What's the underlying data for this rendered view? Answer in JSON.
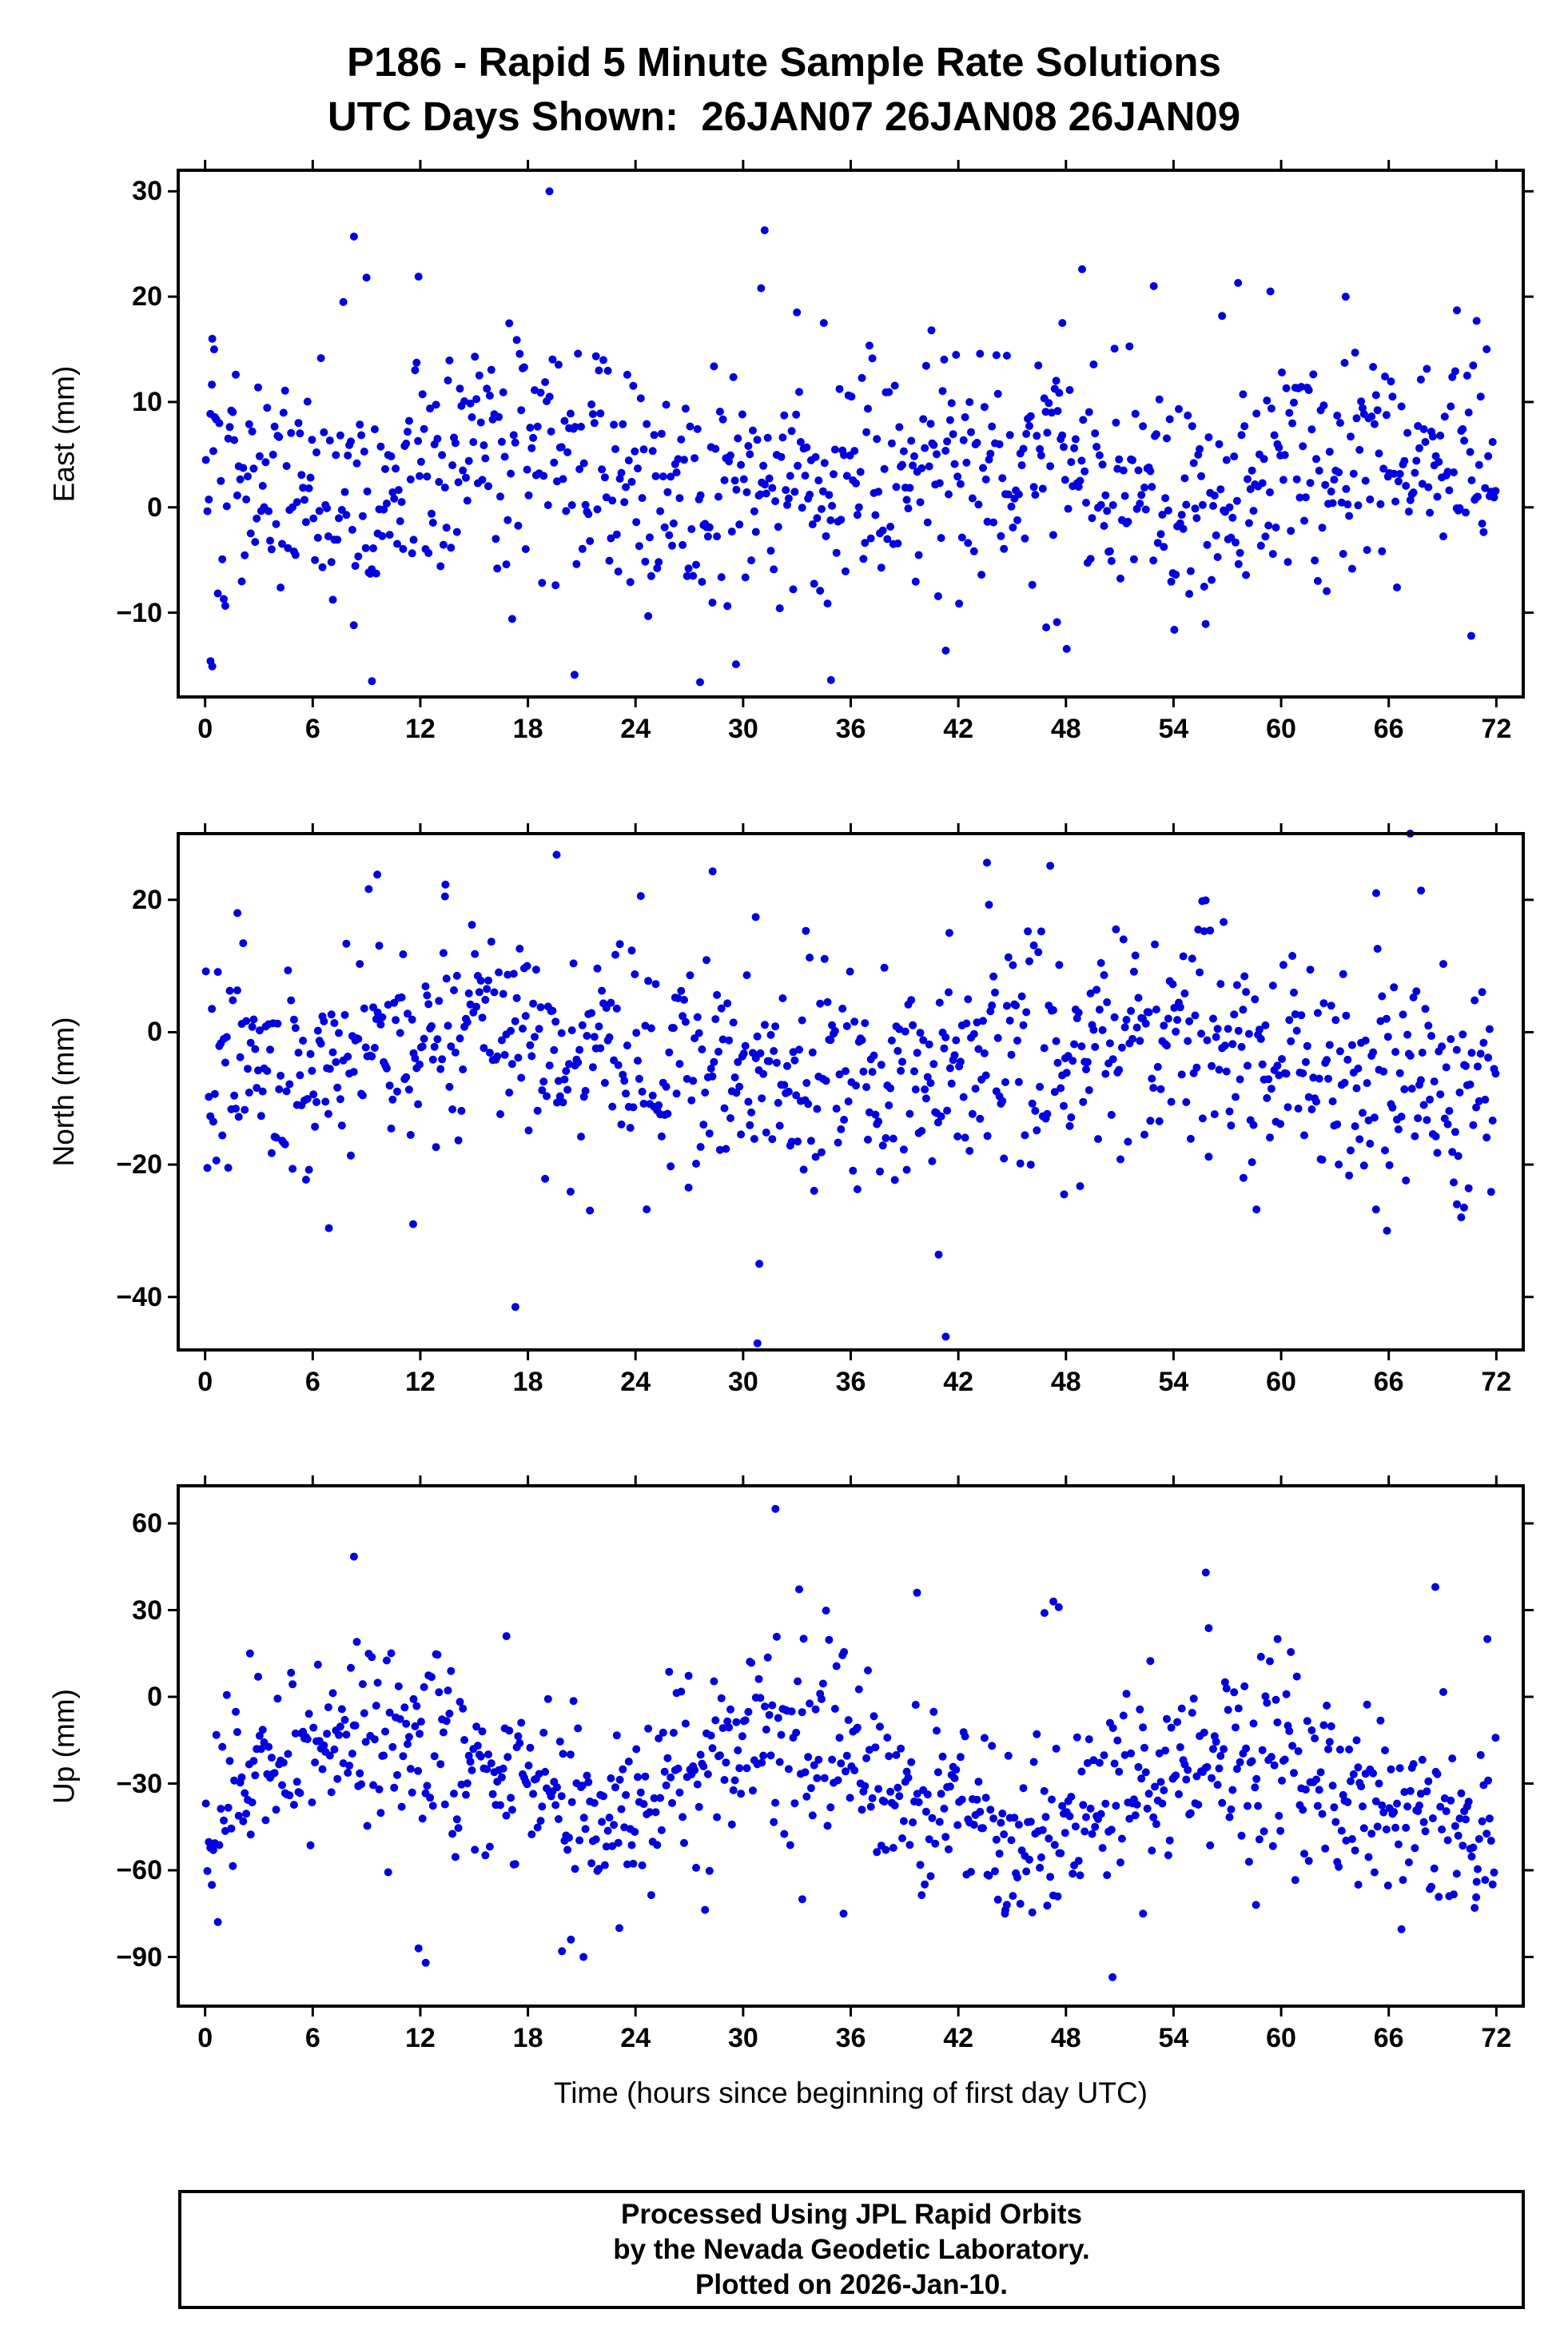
{
  "title": {
    "line1": "P186 - Rapid 5 Minute Sample Rate Solutions",
    "line2": "UTC Days Shown:  26JAN07 26JAN08 26JAN09"
  },
  "footer": {
    "lines": [
      "Processed Using JPL Rapid Orbits",
      "by the Nevada Geodetic Laboratory.",
      "Plotted on 2026-Jan-10."
    ]
  },
  "chart_data": {
    "type": "scatter",
    "station": "P186",
    "utc_days": [
      "26JAN07",
      "26JAN08",
      "26JAN09"
    ],
    "sample_rate_minutes": 5,
    "marker": {
      "color": "#0000e0",
      "radius_px": 5
    },
    "x": {
      "label": "Time (hours since beginning of first day UTC)",
      "lim": [
        -1.5,
        73.5
      ],
      "ticks": [
        0,
        6,
        12,
        18,
        24,
        30,
        36,
        42,
        48,
        54,
        60,
        66,
        72
      ],
      "units": "hours"
    },
    "panels": [
      {
        "name": "east",
        "ylabel": "East (mm)",
        "ylim": [
          -18,
          32
        ],
        "yticks": [
          30,
          20,
          10,
          0,
          -10
        ],
        "n_points": 864,
        "mean": 3.5,
        "std": 5.5,
        "waves": [
          {
            "amp": 2,
            "period": 24,
            "phase": 12
          }
        ],
        "seed": 101,
        "outliers": [
          [
            0.4,
            16
          ],
          [
            0.5,
            15
          ],
          [
            8.3,
            25.7
          ],
          [
            9.0,
            21.8
          ],
          [
            11.9,
            21.9
          ],
          [
            19.2,
            30
          ],
          [
            31.2,
            26.3
          ],
          [
            31.0,
            20.8
          ],
          [
            33.0,
            18.5
          ],
          [
            34.5,
            17.5
          ],
          [
            40.5,
            16.8
          ],
          [
            48.9,
            22.6
          ],
          [
            47.8,
            17.5
          ],
          [
            52.9,
            21
          ],
          [
            57.6,
            21.3
          ],
          [
            59.4,
            20.5
          ],
          [
            63.6,
            20
          ],
          [
            69.8,
            18.7
          ],
          [
            70.9,
            17.7
          ],
          [
            0.3,
            -14.6
          ],
          [
            0.4,
            -15.1
          ],
          [
            9.3,
            -16.5
          ],
          [
            20.6,
            -15.9
          ],
          [
            27.6,
            -16.6
          ],
          [
            29.6,
            -14.9
          ],
          [
            34.9,
            -16.4
          ],
          [
            41.3,
            -13.6
          ],
          [
            46.9,
            -11.4
          ],
          [
            47.5,
            -10.9
          ],
          [
            70.6,
            -12.2
          ]
        ]
      },
      {
        "name": "north",
        "ylabel": "North (mm)",
        "ylim": [
          -48,
          30
        ],
        "yticks": [
          20,
          0,
          -20,
          -40
        ],
        "n_points": 864,
        "mean": -4,
        "std": 8,
        "waves": [
          {
            "amp": 3,
            "period": 36,
            "phase": 6
          }
        ],
        "seed": 202,
        "outliers": [
          [
            1.8,
            18
          ],
          [
            9.6,
            23.8
          ],
          [
            13.4,
            22.3
          ],
          [
            19.6,
            26.8
          ],
          [
            28.3,
            24.3
          ],
          [
            30.7,
            17.4
          ],
          [
            33.5,
            15.3
          ],
          [
            43.6,
            25.6
          ],
          [
            41.5,
            15
          ],
          [
            55.6,
            19.8
          ],
          [
            65.3,
            21
          ],
          [
            67.2,
            30
          ],
          [
            67.8,
            21.4
          ],
          [
            6.9,
            -29.6
          ],
          [
            11.6,
            -29
          ],
          [
            17.3,
            -41.5
          ],
          [
            30.8,
            -47
          ],
          [
            30.9,
            -35
          ],
          [
            41.3,
            -46
          ],
          [
            40.9,
            -33.6
          ],
          [
            47.9,
            -24.5
          ],
          [
            57.9,
            -22
          ],
          [
            69.8,
            -26
          ],
          [
            70.2,
            -26.5
          ],
          [
            65.9,
            -30
          ]
        ]
      },
      {
        "name": "up",
        "ylabel": "Up (mm)",
        "ylim": [
          -107,
          73
        ],
        "yticks": [
          60,
          30,
          0,
          -30,
          -60,
          -90
        ],
        "n_points": 864,
        "mean": -29,
        "std": 15,
        "waves": [
          {
            "amp": 14,
            "period": 24,
            "phase": 3
          },
          {
            "amp": 6,
            "period": 72,
            "phase": 0
          }
        ],
        "seed": 303,
        "outliers": [
          [
            8.3,
            48.5
          ],
          [
            31.8,
            65
          ],
          [
            39.7,
            36
          ],
          [
            46.8,
            29
          ],
          [
            47.3,
            33
          ],
          [
            47.6,
            31
          ],
          [
            55.8,
            43
          ],
          [
            59.8,
            20
          ],
          [
            68.6,
            38
          ],
          [
            71.5,
            20
          ],
          [
            2.5,
            15
          ],
          [
            16.8,
            21
          ],
          [
            12.3,
            -92
          ],
          [
            11.9,
            -87
          ],
          [
            19.9,
            -88
          ],
          [
            21.1,
            -90
          ],
          [
            20.4,
            -84
          ],
          [
            23.1,
            -80
          ],
          [
            35.6,
            -75
          ],
          [
            44.6,
            -75
          ],
          [
            50.6,
            -97
          ],
          [
            52.3,
            -75
          ],
          [
            58.6,
            -72
          ],
          [
            64.3,
            -65
          ],
          [
            70.9,
            -64
          ],
          [
            33.3,
            -70
          ]
        ]
      }
    ]
  }
}
